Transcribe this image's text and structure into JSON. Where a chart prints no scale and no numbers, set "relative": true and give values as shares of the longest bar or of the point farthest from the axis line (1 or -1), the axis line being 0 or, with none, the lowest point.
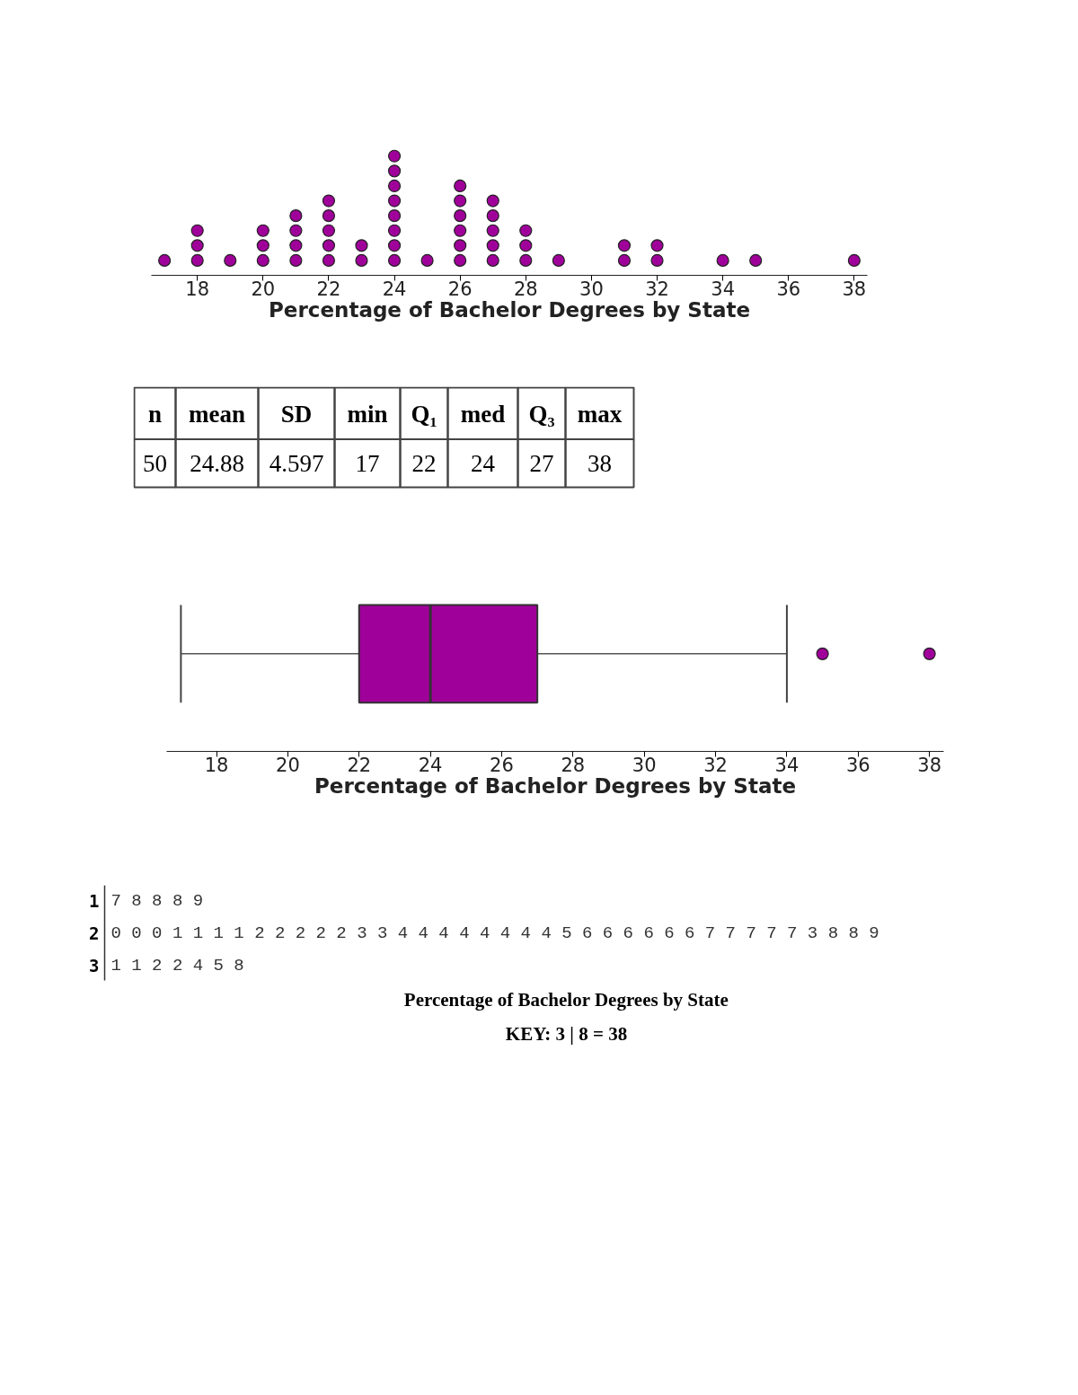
{
  "chart_data": [
    {
      "type": "scatter",
      "marker": "circle",
      "tick_labels": "x",
      "xlabel": "Percentage of Bachelor Degrees by State",
      "xlim": [
        16.6,
        38.4
      ],
      "xticks": [
        18,
        20,
        22,
        24,
        26,
        28,
        30,
        32,
        34,
        36,
        38
      ],
      "relative": true,
      "series": [
        {
          "color": "#a0009a",
          "x": [
            17,
            18,
            18,
            18,
            19,
            20,
            20,
            20,
            21,
            21,
            21,
            21,
            22,
            22,
            22,
            22,
            22,
            23,
            23,
            24,
            24,
            24,
            24,
            24,
            24,
            24,
            24,
            25,
            26,
            26,
            26,
            26,
            26,
            26,
            27,
            27,
            27,
            27,
            27,
            28,
            28,
            28,
            29,
            31,
            31,
            32,
            32,
            34,
            35,
            38
          ],
          "values": [
            0.125,
            0.125,
            0.25,
            0.375,
            0.125,
            0.125,
            0.25,
            0.375,
            0.125,
            0.25,
            0.375,
            0.5,
            0.125,
            0.25,
            0.375,
            0.5,
            0.625,
            0.125,
            0.25,
            0.125,
            0.25,
            0.375,
            0.5,
            0.625,
            0.75,
            0.875,
            1,
            0.125,
            0.125,
            0.25,
            0.375,
            0.5,
            0.625,
            0.75,
            0.125,
            0.25,
            0.375,
            0.5,
            0.625,
            0.125,
            0.25,
            0.375,
            0.125,
            0.125,
            0.25,
            0.125,
            0.25,
            0.125,
            0.125,
            0.125
          ]
        }
      ]
    },
    {
      "type": "other",
      "categories": [
        "n",
        "mean",
        "SD",
        "min",
        "Q₁",
        "med",
        "Q₃",
        "max"
      ],
      "values": [
        50,
        24.88,
        4.597,
        17,
        22,
        24,
        27,
        38
      ],
      "data_labels": true
    },
    {
      "type": "box",
      "orientation": "horizontal",
      "tick_labels": "x",
      "xlabel": "Percentage of Bachelor Degrees by State",
      "xlim": [
        16.6,
        38.4
      ],
      "xticks": [
        18,
        20,
        22,
        24,
        26,
        28,
        30,
        32,
        34,
        36,
        38
      ],
      "categories": [
        null
      ],
      "colors": [
        "#a0009a"
      ],
      "boxes": [
        {
          "low": 17,
          "q1": 22,
          "median": 24,
          "q3": 27,
          "high": 34,
          "outliers": [
            35,
            38
          ]
        }
      ]
    },
    {
      "type": "other",
      "categories": [
        "1",
        "2",
        "3"
      ],
      "value_labels": [
        "7 8 8 8 9",
        "0 0 0 1 1 1 1 2 2 2 2 2 3 3 4 4 4 4 4 4 4 4 5 6 6 6 6 6 6 7 7 7 7 7 3 8 8 9",
        "1 1 2 2 4 5 8"
      ],
      "xlabel": "Percentage of Bachelor Degrees by State",
      "annotations": [
        "KEY: 3 | 8 = 38"
      ]
    }
  ]
}
